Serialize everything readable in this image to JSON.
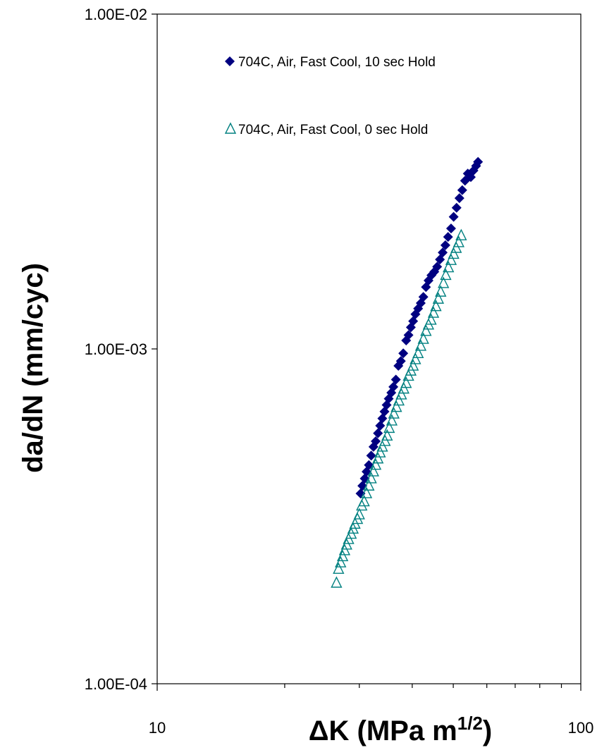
{
  "chart_data": {
    "type": "scatter",
    "x_scale": "log",
    "y_scale": "log",
    "xlim": [
      10,
      100
    ],
    "ylim": [
      0.0001,
      0.01
    ],
    "x_tick_labels": [
      "10",
      "100"
    ],
    "y_tick_labels": [
      "1.00E-04",
      "1.00E-03",
      "1.00E-02"
    ],
    "xlabel_main": "ΔK (MPa m",
    "xlabel_sup": "1/2",
    "xlabel_end": ")",
    "ylabel": "da/dN (mm/cyc)",
    "grid": false,
    "legend_position": "top-right",
    "series": [
      {
        "name": "704C, Air, Fast Cool, 10 sec Hold",
        "marker": "diamond",
        "color": "#000080",
        "x": [
          30.2,
          30.5,
          30.9,
          31.2,
          31.6,
          32.0,
          32.4,
          32.8,
          33.2,
          33.6,
          34.0,
          34.4,
          34.8,
          35.2,
          35.7,
          36.1,
          36.6,
          37.1,
          37.6,
          38.1,
          38.7,
          39.2,
          39.7,
          40.2,
          40.7,
          41.3,
          41.9,
          42.5,
          43.1,
          43.7,
          44.4,
          45.1,
          45.8,
          46.5,
          47.2,
          47.9,
          48.6,
          49.4,
          50.1,
          50.9,
          51.7,
          52.5,
          53.3,
          54.1,
          55.0,
          55.8,
          56.6,
          57.2
        ],
        "y": [
          0.00037,
          0.00039,
          0.00041,
          0.00043,
          0.00045,
          0.00048,
          0.00051,
          0.00053,
          0.00056,
          0.00059,
          0.00062,
          0.00065,
          0.00068,
          0.00071,
          0.00074,
          0.00077,
          0.00081,
          0.00089,
          0.00092,
          0.00097,
          0.00106,
          0.0011,
          0.00116,
          0.00121,
          0.00127,
          0.00132,
          0.00137,
          0.00143,
          0.00153,
          0.0016,
          0.00166,
          0.0017,
          0.00176,
          0.00185,
          0.00194,
          0.00204,
          0.00216,
          0.00229,
          0.00248,
          0.00264,
          0.00282,
          0.00298,
          0.00318,
          0.00334,
          0.00326,
          0.00341,
          0.00352,
          0.00362
        ]
      },
      {
        "name": "704C, Air, Fast Cool, 0 sec Hold",
        "marker": "triangle-open",
        "color": "#008080",
        "x": [
          26.5,
          26.8,
          27.1,
          27.4,
          27.7,
          28.0,
          28.3,
          28.7,
          29.0,
          29.3,
          29.7,
          30.0,
          30.4,
          30.8,
          31.2,
          31.6,
          32.0,
          32.4,
          32.8,
          33.2,
          33.6,
          34.0,
          34.5,
          34.9,
          35.3,
          35.8,
          36.2,
          36.7,
          37.2,
          37.7,
          38.2,
          38.7,
          39.2,
          39.7,
          40.2,
          40.7,
          41.3,
          41.9,
          42.5,
          43.1,
          43.7,
          44.3,
          44.9,
          45.5,
          46.1,
          46.7,
          47.4,
          48.0,
          48.7,
          49.4,
          50.1,
          50.8,
          51.5,
          52.2
        ],
        "y": [
          0.0002,
          0.00022,
          0.00023,
          0.00024,
          0.00025,
          0.00026,
          0.00027,
          0.00028,
          0.00029,
          0.0003,
          0.00031,
          0.00032,
          0.00034,
          0.00035,
          0.00037,
          0.00039,
          0.00041,
          0.00043,
          0.00045,
          0.00047,
          0.00049,
          0.00051,
          0.00053,
          0.00055,
          0.00058,
          0.00061,
          0.00064,
          0.00067,
          0.0007,
          0.00073,
          0.00076,
          0.00079,
          0.00083,
          0.00086,
          0.00089,
          0.00093,
          0.00097,
          0.00102,
          0.00107,
          0.00113,
          0.00118,
          0.00122,
          0.00128,
          0.00134,
          0.00141,
          0.00148,
          0.00157,
          0.00166,
          0.00175,
          0.00184,
          0.00192,
          0.002,
          0.00208,
          0.00218
        ]
      }
    ]
  }
}
